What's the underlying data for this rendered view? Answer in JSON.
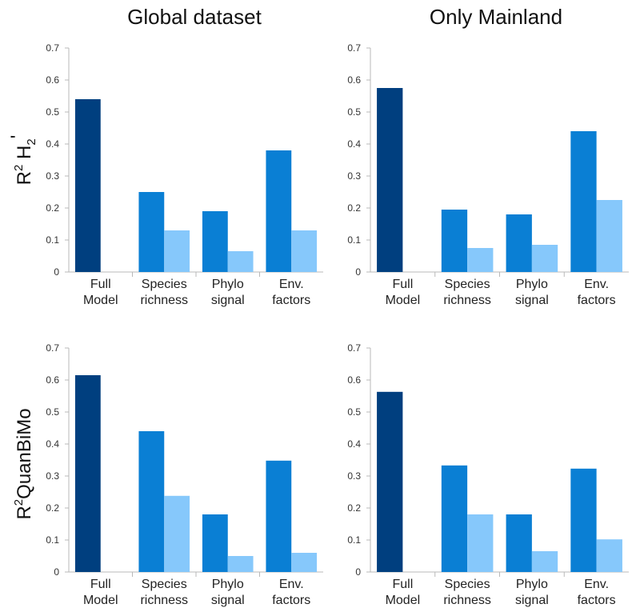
{
  "figure": {
    "column_titles": [
      "Global dataset",
      "Only Mainland"
    ],
    "row_labels": [
      {
        "main": "R",
        "sup": "2",
        "rest": " H",
        "sub": "2",
        "tail": "'"
      },
      {
        "main": "R",
        "sup": "2",
        "rest": "QuanBiMo",
        "sub": "",
        "tail": ""
      }
    ],
    "colors": {
      "full": "#003f7f",
      "mid": "#0a7fd4",
      "light": "#86c8fb",
      "axis": "#b8b8b8"
    }
  },
  "chart_data": [
    {
      "type": "bar",
      "panel": "Global dataset / R² H2'",
      "categories": [
        [
          "Full",
          "Model"
        ],
        [
          "Species",
          "richness"
        ],
        [
          "Phylo",
          "signal"
        ],
        [
          "Env.",
          "factors"
        ]
      ],
      "series": [
        {
          "values": [
            0.54,
            0.25,
            0.19,
            0.38
          ]
        },
        {
          "values": [
            null,
            0.13,
            0.065,
            0.13
          ]
        }
      ],
      "yticks": [
        "0",
        "0.1",
        "0.2",
        "0.3",
        "0.4",
        "0.5",
        "0.6",
        "0.7"
      ],
      "ylim": [
        0,
        0.7
      ]
    },
    {
      "type": "bar",
      "panel": "Only Mainland / R² H2'",
      "categories": [
        [
          "Full",
          "Model"
        ],
        [
          "Species",
          "richness"
        ],
        [
          "Phylo",
          "signal"
        ],
        [
          "Env.",
          "factors"
        ]
      ],
      "series": [
        {
          "values": [
            0.575,
            0.195,
            0.18,
            0.44
          ]
        },
        {
          "values": [
            null,
            0.075,
            0.085,
            0.225
          ]
        }
      ],
      "yticks": [
        "0",
        "0.1",
        "0.2",
        "0.3",
        "0.4",
        "0.5",
        "0.6",
        "0.7"
      ],
      "ylim": [
        0,
        0.7
      ]
    },
    {
      "type": "bar",
      "panel": "Global dataset / R² QuanBiMo",
      "categories": [
        [
          "Full",
          "Model"
        ],
        [
          "Species",
          "richness"
        ],
        [
          "Phylo",
          "signal"
        ],
        [
          "Env.",
          "factors"
        ]
      ],
      "series": [
        {
          "values": [
            0.615,
            0.44,
            0.18,
            0.348
          ]
        },
        {
          "values": [
            null,
            0.238,
            0.05,
            0.06
          ]
        }
      ],
      "yticks": [
        "0",
        "0.1",
        "0.2",
        "0.3",
        "0.4",
        "0.5",
        "0.6",
        "0.7"
      ],
      "ylim": [
        0,
        0.7
      ]
    },
    {
      "type": "bar",
      "panel": "Only Mainland / R² QuanBiMo",
      "categories": [
        [
          "Full",
          "Model"
        ],
        [
          "Species",
          "richness"
        ],
        [
          "Phylo",
          "signal"
        ],
        [
          "Env.",
          "factors"
        ]
      ],
      "series": [
        {
          "values": [
            0.563,
            0.333,
            0.18,
            0.323
          ]
        },
        {
          "values": [
            null,
            0.18,
            0.065,
            0.102
          ]
        }
      ],
      "yticks": [
        "0",
        "0.1",
        "0.2",
        "0.3",
        "0.4",
        "0.5",
        "0.6",
        "0.7"
      ],
      "ylim": [
        0,
        0.7
      ]
    }
  ]
}
